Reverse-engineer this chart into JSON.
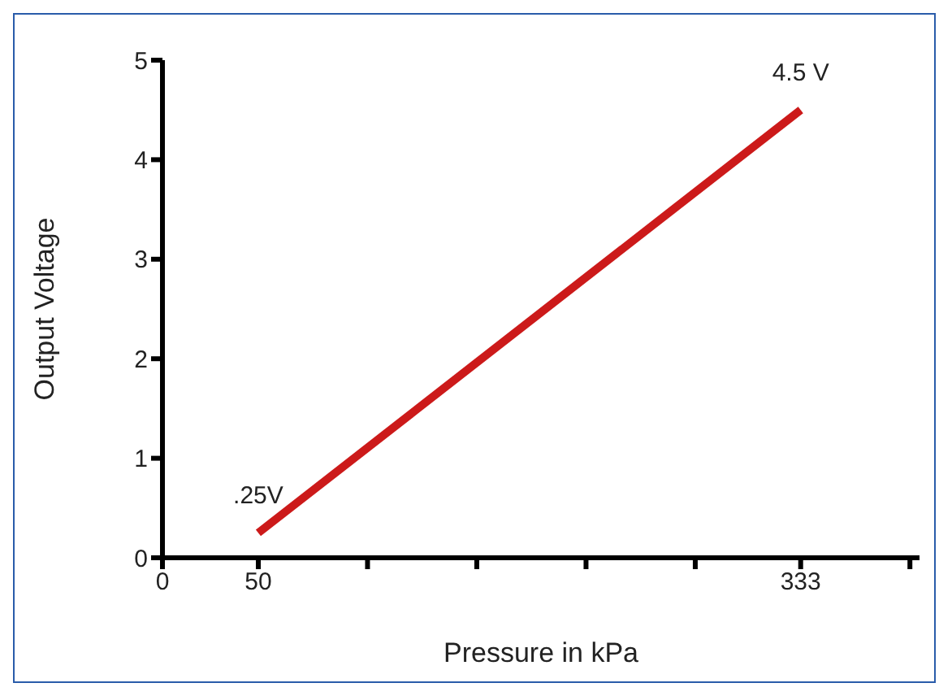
{
  "chart_data": {
    "type": "line",
    "xlabel": "Pressure in kPa",
    "ylabel": "Output Voltage",
    "x": [
      50,
      333
    ],
    "series": [
      {
        "color": "#cc1a1a",
        "values": [
          0.25,
          4.5
        ]
      }
    ],
    "xlim": [
      0,
      395
    ],
    "xticks": [
      0,
      50,
      {
        "value": 107,
        "label": null
      },
      {
        "value": 164,
        "label": null
      },
      {
        "value": 221,
        "label": null
      },
      {
        "value": 278,
        "label": null
      },
      333,
      {
        "value": 390,
        "label": null
      }
    ],
    "ylim": [
      0,
      5
    ],
    "yticks": [
      0,
      1,
      2,
      3,
      4,
      5
    ],
    "marker": "none",
    "annotations": [
      {
        "text": ".25V",
        "x": 50,
        "y": 0.25
      },
      {
        "text": "4.5 V",
        "x": 333,
        "y": 4.5
      }
    ]
  }
}
